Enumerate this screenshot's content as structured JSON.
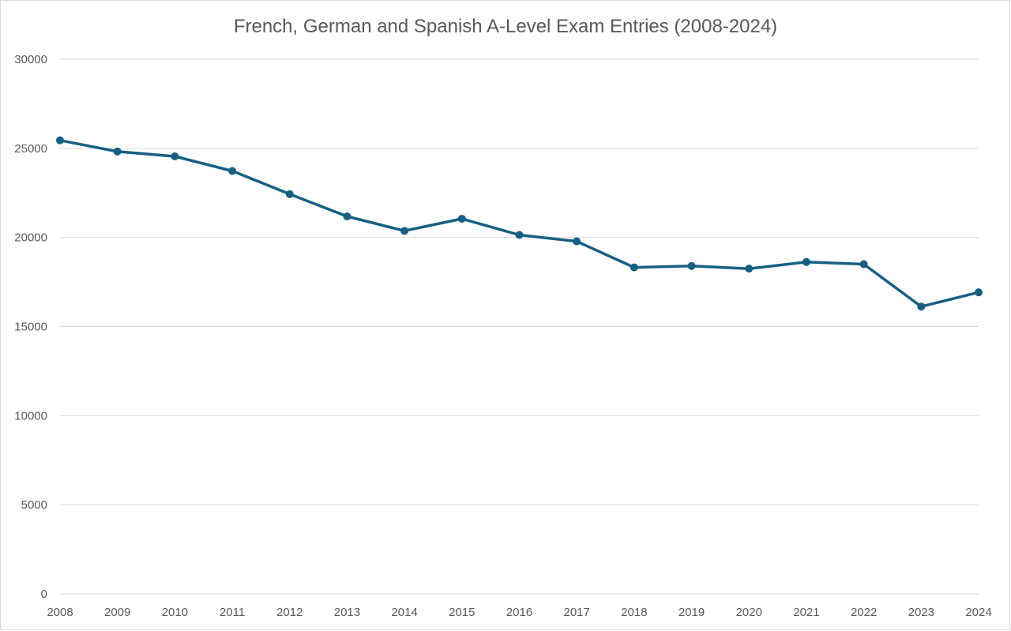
{
  "chart_data": {
    "type": "line",
    "title": "French, German and Spanish A-Level Exam Entries (2008-2024)",
    "xlabel": "",
    "ylabel": "",
    "x": [
      "2008",
      "2009",
      "2010",
      "2011",
      "2012",
      "2013",
      "2014",
      "2015",
      "2016",
      "2017",
      "2018",
      "2019",
      "2020",
      "2021",
      "2022",
      "2023",
      "2024"
    ],
    "series": [
      {
        "values": [
          25450,
          24820,
          24550,
          23730,
          22430,
          21180,
          20370,
          21050,
          20140,
          19780,
          18320,
          18400,
          18250,
          18620,
          18500,
          16120,
          16920
        ],
        "color": "#156082"
      }
    ],
    "ylim": [
      0,
      30000
    ],
    "yticks": [
      0,
      5000,
      10000,
      15000,
      20000,
      25000,
      30000
    ],
    "grid": true,
    "legend": "none",
    "colors": {
      "line": "#156082",
      "grid": "#d9d9d9",
      "text": "#595959"
    }
  }
}
